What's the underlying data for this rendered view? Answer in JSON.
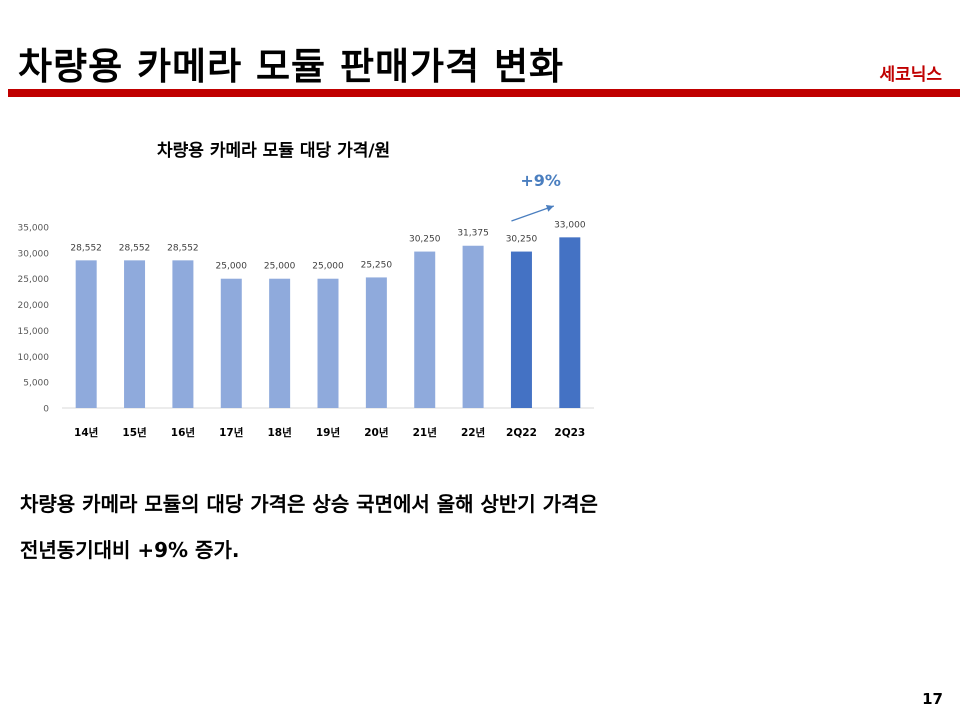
{
  "slide": {
    "title": "차량용 카메라 모듈 판매가격 변화",
    "company": "세코닉스",
    "page_number": "17",
    "summary_line1": "차량용 카메라 모듈의 대당 가격은 상승 국면에서 올해 상반기 가격은",
    "summary_line2": "전년동기대비 +9% 증가."
  },
  "colors": {
    "accent_red": "#c00000",
    "bar_light": "#8faadc",
    "bar_dark": "#4472c4",
    "arrow": "#4a7ebf"
  },
  "chart_data": {
    "type": "bar",
    "title": "차량용 카메라 모듈 대당 가격/원",
    "categories": [
      "14년",
      "15년",
      "16년",
      "17년",
      "18년",
      "19년",
      "20년",
      "21년",
      "22년",
      "2Q22",
      "2Q23"
    ],
    "values": [
      28552,
      28552,
      28552,
      25000,
      25000,
      25000,
      25250,
      30250,
      31375,
      30250,
      33000
    ],
    "value_labels": [
      "28,552",
      "28,552",
      "28,552",
      "25,000",
      "25,000",
      "25,000",
      "25,250",
      "30,250",
      "31,375",
      "30,250",
      "33,000"
    ],
    "highlight": [
      false,
      false,
      false,
      false,
      false,
      false,
      false,
      false,
      false,
      true,
      true
    ],
    "ylim": [
      0,
      35000
    ],
    "yticks": [
      0,
      5000,
      10000,
      15000,
      20000,
      25000,
      30000,
      35000
    ],
    "ytick_labels": [
      "0",
      "5,000",
      "10,000",
      "15,000",
      "20,000",
      "25,000",
      "30,000",
      "35,000"
    ],
    "grid": false,
    "legend": "none",
    "annotation": {
      "text": "+9%",
      "from": "2Q22",
      "to": "2Q23"
    }
  }
}
